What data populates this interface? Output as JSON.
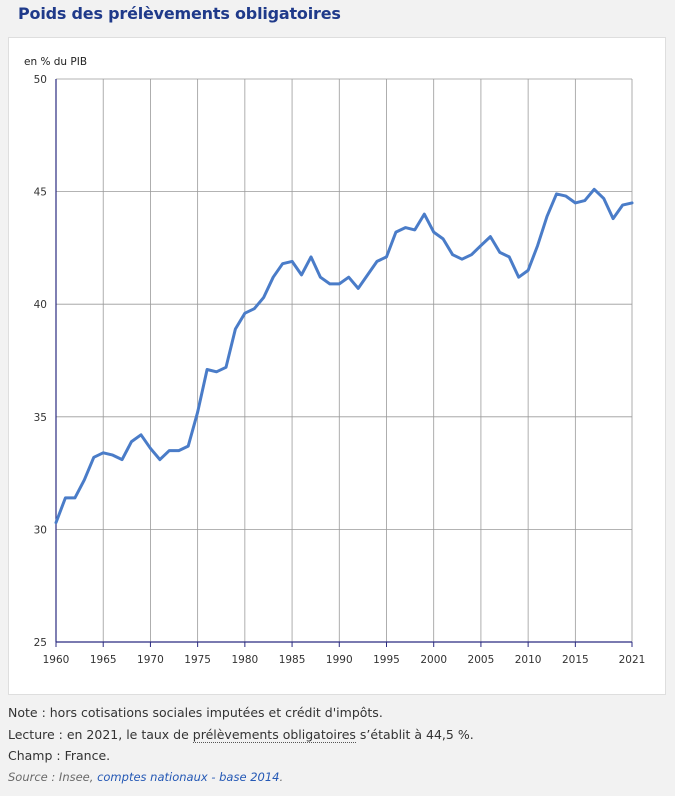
{
  "header": {
    "title": "Poids des prélèvements obligatoires"
  },
  "chart_data": {
    "type": "line",
    "unit_label": "en % du PIB",
    "ylim": [
      25,
      50
    ],
    "yticks": [
      25,
      30,
      35,
      40,
      45,
      50
    ],
    "xlim": [
      1960,
      2021
    ],
    "xticks": [
      1960,
      1965,
      1970,
      1975,
      1980,
      1985,
      1990,
      1995,
      2000,
      2005,
      2010,
      2015,
      2021
    ],
    "grid": true,
    "color": "#4a7cc8",
    "x": [
      1960,
      1961,
      1962,
      1963,
      1964,
      1965,
      1966,
      1967,
      1968,
      1969,
      1970,
      1971,
      1972,
      1973,
      1974,
      1975,
      1976,
      1977,
      1978,
      1979,
      1980,
      1981,
      1982,
      1983,
      1984,
      1985,
      1986,
      1987,
      1988,
      1989,
      1990,
      1991,
      1992,
      1993,
      1994,
      1995,
      1996,
      1997,
      1998,
      1999,
      2000,
      2001,
      2002,
      2003,
      2004,
      2005,
      2006,
      2007,
      2008,
      2009,
      2010,
      2011,
      2012,
      2013,
      2014,
      2015,
      2016,
      2017,
      2018,
      2019,
      2020,
      2021
    ],
    "values": [
      30.3,
      31.4,
      31.4,
      32.2,
      33.2,
      33.4,
      33.3,
      33.1,
      33.9,
      34.2,
      33.6,
      33.1,
      33.5,
      33.5,
      33.7,
      35.2,
      37.1,
      37.0,
      37.2,
      38.9,
      39.6,
      39.8,
      40.3,
      41.2,
      41.8,
      41.9,
      41.3,
      42.1,
      41.2,
      40.9,
      40.9,
      41.2,
      40.7,
      41.3,
      41.9,
      42.1,
      43.2,
      43.4,
      43.3,
      44.0,
      43.2,
      42.9,
      42.2,
      42.0,
      42.2,
      42.6,
      43.0,
      42.3,
      42.1,
      41.2,
      41.5,
      42.6,
      43.9,
      44.9,
      44.8,
      44.5,
      44.6,
      45.1,
      44.7,
      43.8,
      44.4,
      44.5
    ]
  },
  "notes": {
    "note": "Note : hors cotisations sociales imputées et crédit d'impôts.",
    "lecture_prefix": "Lecture : en 2021, le taux de ",
    "lecture_term": "prélèvements obligatoires",
    "lecture_suffix": " s’établit à 44,5 %.",
    "champ": "Champ : France.",
    "source_prefix": "Source : Insee, ",
    "source_link": "comptes nationaux - base 2014",
    "source_suffix": "."
  }
}
